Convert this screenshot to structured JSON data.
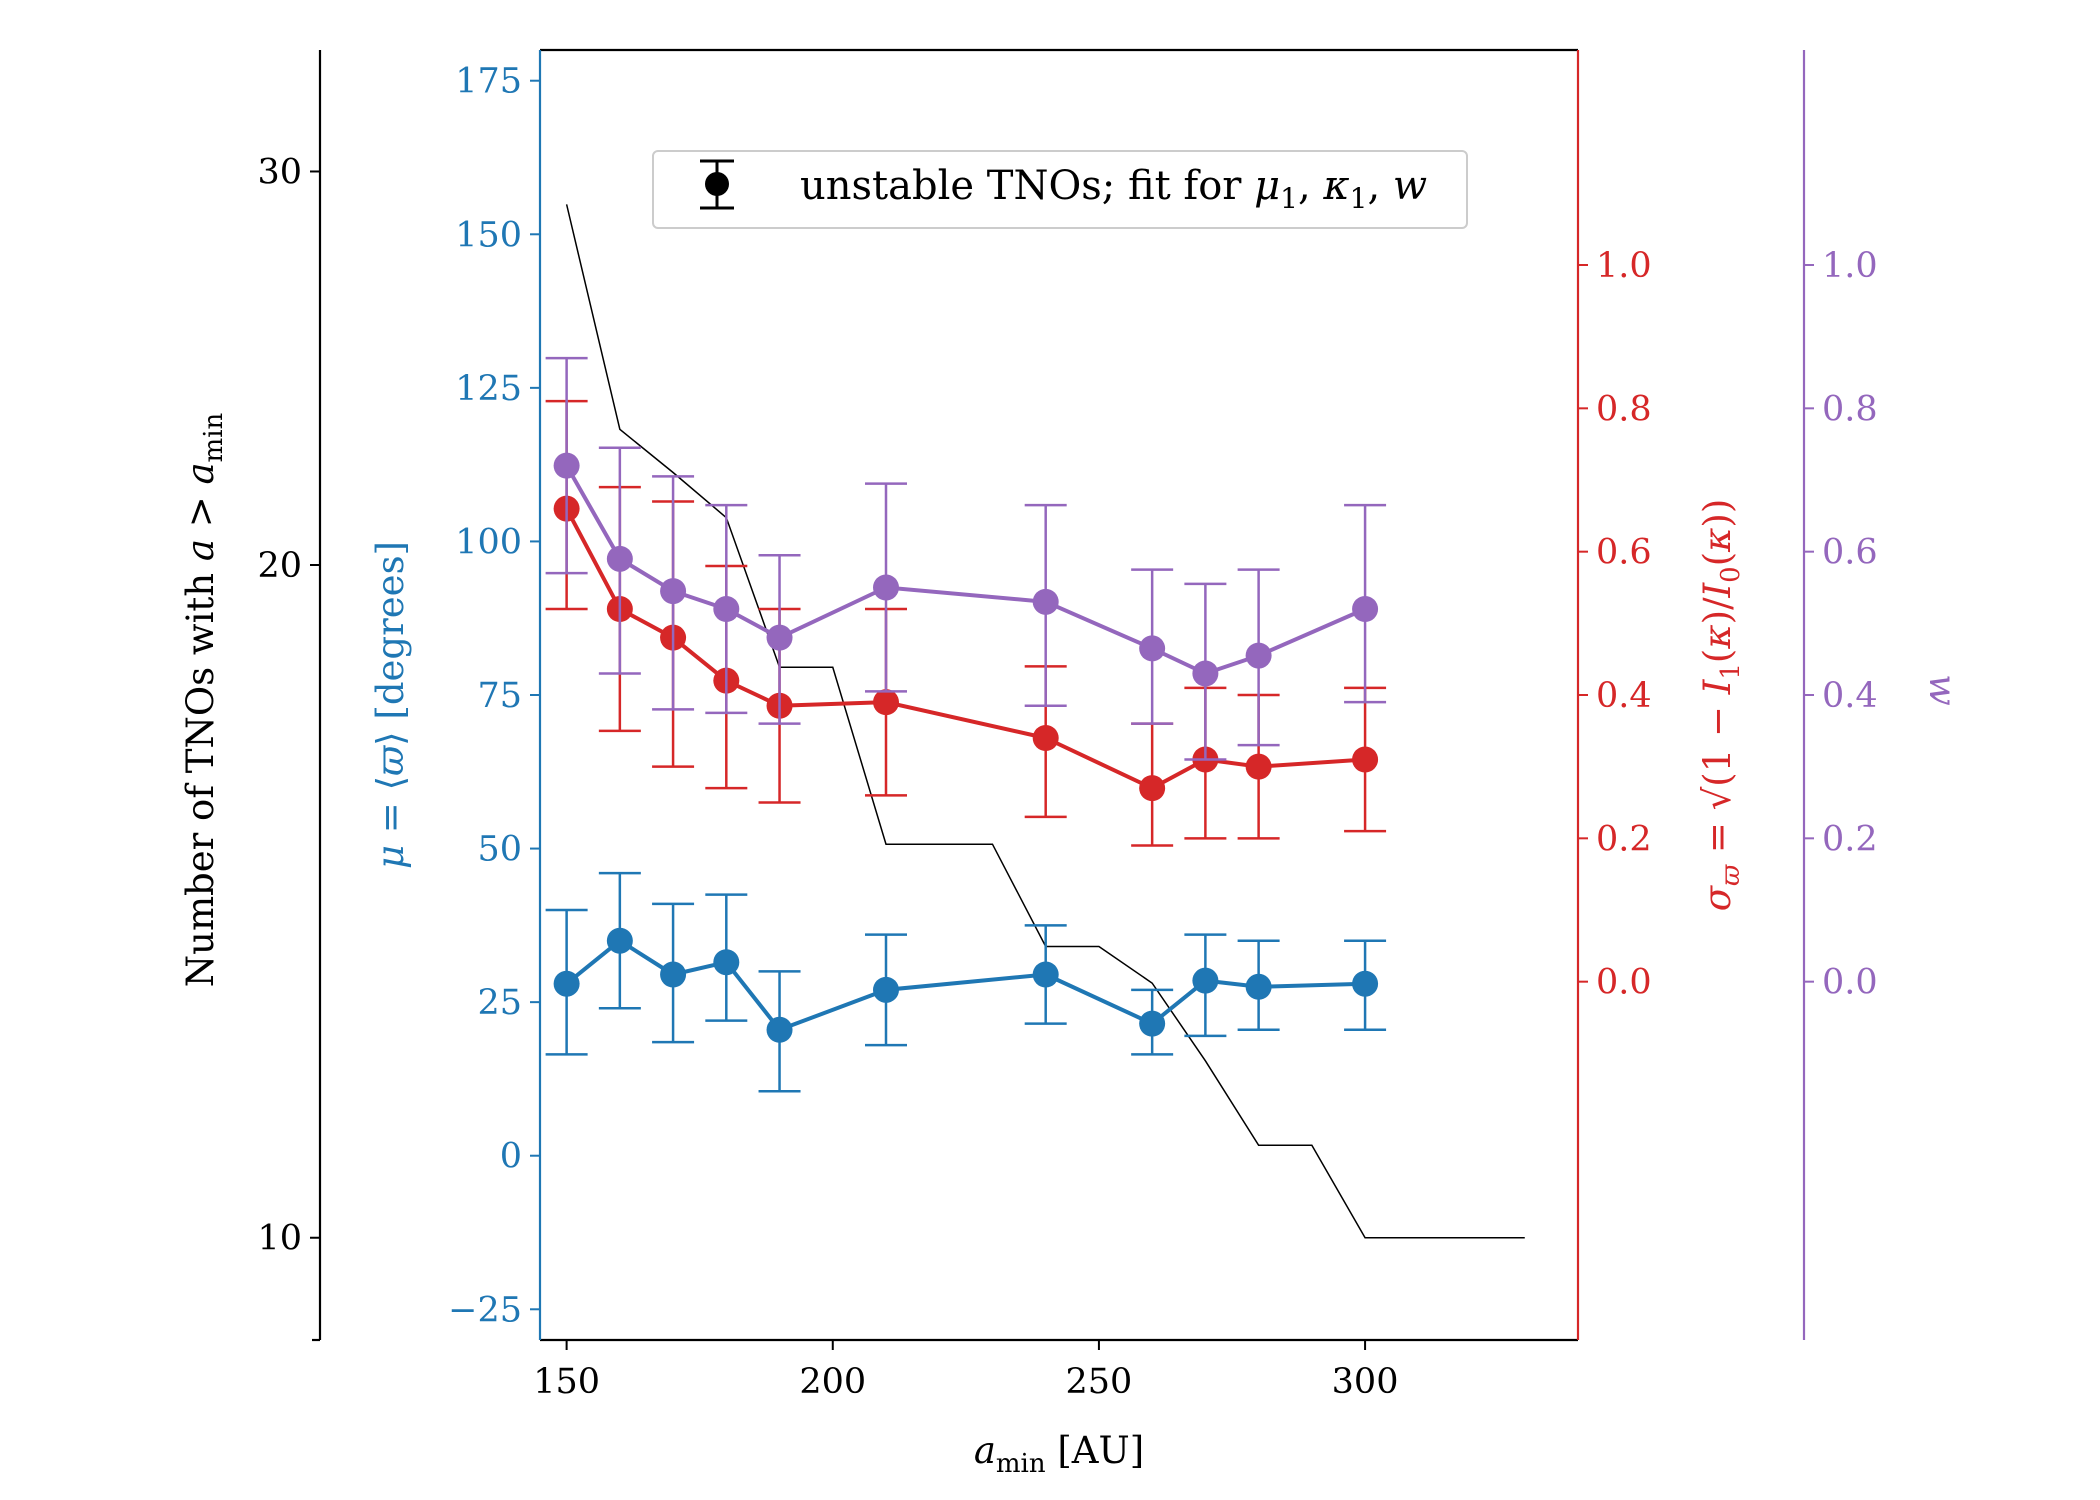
{
  "chart_data": {
    "type": "line",
    "xlabel": "a_min [AU]",
    "x_ticks": [
      150,
      200,
      250,
      300
    ],
    "xlim": [
      145,
      340
    ],
    "legend": {
      "label": "unstable TNOs; fit for μ₁, κ₁, w",
      "placement": "top-center"
    },
    "axes": {
      "count": {
        "label": "Number of TNOs with a > a_min",
        "color": "#000000",
        "position": "far-left",
        "scale": "log",
        "ylim": [
          9,
          34
        ],
        "ticks": [
          10,
          20,
          30
        ]
      },
      "mu": {
        "label": "μ = ⟨ϖ⟩ [degrees]",
        "color": "#1f77b4",
        "position": "left",
        "ylim": [
          -30,
          180
        ],
        "ticks": [
          -25,
          0,
          25,
          50,
          75,
          100,
          125,
          150,
          175
        ]
      },
      "sigma": {
        "label": "σ_ϖ = √(1 − I₁(κ)/I₀(κ))",
        "color": "#d62728",
        "position": "right",
        "ylim": [
          -0.5,
          1.3
        ],
        "ticks": [
          0.0,
          0.2,
          0.4,
          0.6,
          0.8,
          1.0
        ]
      },
      "w": {
        "label": "w",
        "color": "#9467bd",
        "position": "far-right",
        "ylim": [
          -0.5,
          1.3
        ],
        "ticks": [
          0.0,
          0.2,
          0.4,
          0.6,
          0.8,
          1.0
        ]
      }
    },
    "series": [
      {
        "name": "number of TNOs",
        "axis": "count",
        "style": "step-line",
        "color": "#000000",
        "x": [
          150,
          160,
          170,
          180,
          190,
          200,
          210,
          220,
          230,
          240,
          250,
          260,
          270,
          280,
          290,
          300,
          310,
          320,
          330
        ],
        "y": [
          29,
          23,
          22,
          21,
          18,
          18,
          15,
          15,
          15,
          13.5,
          13.5,
          13,
          12,
          11,
          11,
          10,
          10,
          10,
          10
        ]
      },
      {
        "name": "mu",
        "axis": "mu",
        "color": "#1f77b4",
        "x": [
          150,
          160,
          170,
          180,
          190,
          210,
          240,
          260,
          270,
          280,
          300
        ],
        "y": [
          28,
          35,
          29.5,
          31.5,
          20.5,
          27,
          29.5,
          21.5,
          28.5,
          27.5,
          28
        ],
        "err_low": [
          16.5,
          24,
          18.5,
          22,
          10.5,
          18,
          21.5,
          16.5,
          19.5,
          20.5,
          20.5
        ],
        "err_high": [
          40,
          46,
          41,
          42.5,
          30,
          36,
          37.5,
          27,
          36,
          35,
          35
        ]
      },
      {
        "name": "sigma",
        "axis": "sigma",
        "color": "#d62728",
        "x": [
          150,
          160,
          170,
          180,
          190,
          210,
          240,
          260,
          270,
          280,
          300
        ],
        "y": [
          0.66,
          0.52,
          0.48,
          0.42,
          0.385,
          0.39,
          0.34,
          0.27,
          0.31,
          0.3,
          0.31
        ],
        "err_low": [
          0.52,
          0.35,
          0.3,
          0.27,
          0.25,
          0.26,
          0.23,
          0.19,
          0.2,
          0.2,
          0.21
        ],
        "err_high": [
          0.81,
          0.69,
          0.67,
          0.58,
          0.52,
          0.52,
          0.44,
          0.36,
          0.41,
          0.4,
          0.41
        ]
      },
      {
        "name": "w",
        "axis": "w",
        "color": "#9467bd",
        "x": [
          150,
          160,
          170,
          180,
          190,
          210,
          240,
          260,
          270,
          280,
          300
        ],
        "y": [
          0.72,
          0.59,
          0.545,
          0.52,
          0.48,
          0.55,
          0.53,
          0.465,
          0.43,
          0.455,
          0.52
        ],
        "err_low": [
          0.57,
          0.43,
          0.38,
          0.375,
          0.36,
          0.405,
          0.385,
          0.36,
          0.31,
          0.33,
          0.39
        ],
        "err_high": [
          0.87,
          0.745,
          0.705,
          0.665,
          0.595,
          0.695,
          0.665,
          0.575,
          0.555,
          0.575,
          0.665
        ]
      }
    ]
  }
}
